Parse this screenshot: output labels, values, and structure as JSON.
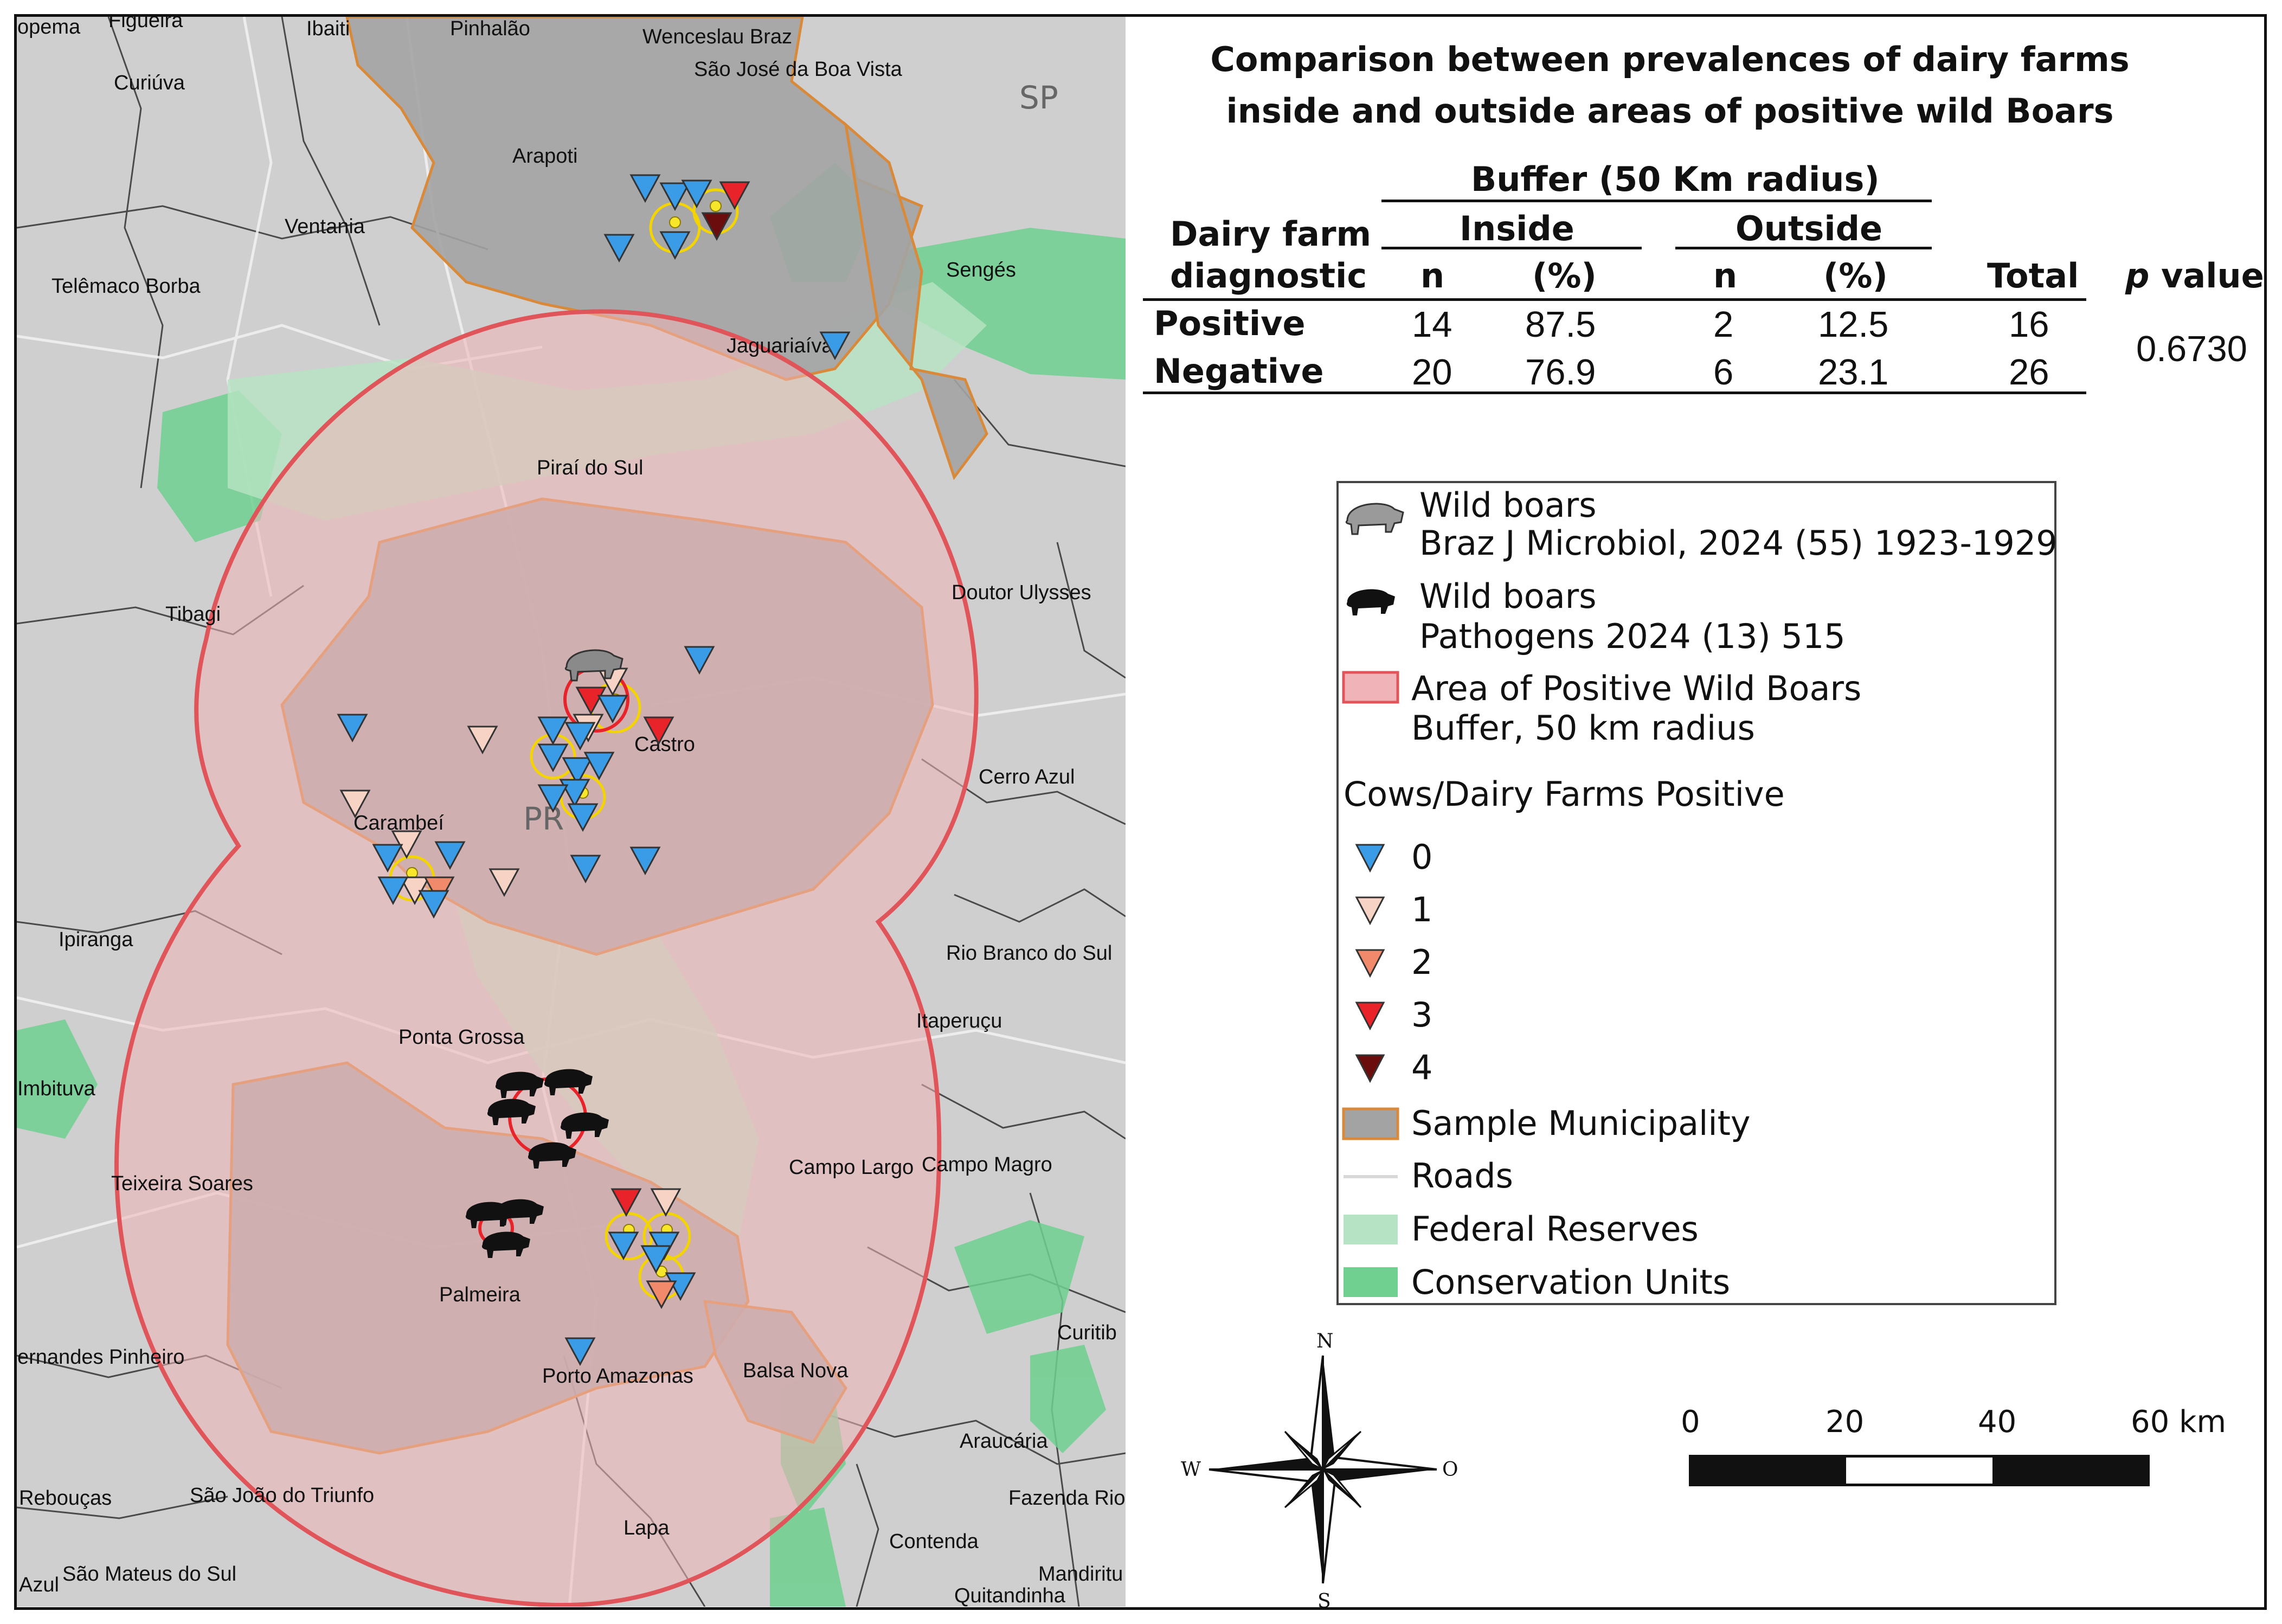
{
  "title": {
    "line1": "Comparison between prevalences of dairy farms",
    "line2": "inside and outside areas of positive wild Boars"
  },
  "table": {
    "buffer_header": "Buffer (50 Km radius)",
    "row_header_line1": "Dairy farm",
    "row_header_line2": "diagnostic",
    "inside_header": "Inside",
    "outside_header": "Outside",
    "n_label": "n",
    "pct_label": "(%)",
    "total_label": "Total",
    "p_label_italic": "p",
    "p_label_rest": " value",
    "p_value": "0.6730",
    "rows": [
      {
        "label": "Positive",
        "inside_n": "14",
        "inside_pct": "87.5",
        "outside_n": "2",
        "outside_pct": "12.5",
        "total": "16"
      },
      {
        "label": "Negative",
        "inside_n": "20",
        "inside_pct": "76.9",
        "outside_n": "6",
        "outside_pct": "23.1",
        "total": "26"
      }
    ]
  },
  "legend": {
    "boar1_line1": "Wild boars",
    "boar1_line2": "Braz J Microbiol, 2024 (55) 1923-1929",
    "boar2_line1": "Wild boars",
    "boar2_line2": "Pathogens 2024 (13) 515",
    "area_line1": "Area of Positive Wild Boars",
    "area_line2": "Buffer, 50 km radius",
    "cows_title": "Cows/Dairy Farms Positive",
    "classes": [
      {
        "label": "0",
        "color": "#3a9be6"
      },
      {
        "label": "1",
        "color": "#f7d3c6"
      },
      {
        "label": "2",
        "color": "#f08a6a"
      },
      {
        "label": "3",
        "color": "#e8232a"
      },
      {
        "label": "4",
        "color": "#6b0d0d"
      }
    ],
    "sample_municipality": "Sample Municipality",
    "roads": "Roads",
    "federal_reserves": "Federal Reserves",
    "conservation_units": "Conservation Units"
  },
  "colors": {
    "municipality_fill": "#a3a3a3",
    "municipality_border": "#d88a3a",
    "buffer_fill": "#f0b4b8",
    "buffer_border": "#e0555a",
    "federal_reserve": "#b6e3c3",
    "conservation_unit": "#6fd08f",
    "background_land": "#cfcfcf"
  },
  "compass": {
    "n": "N",
    "s": "S",
    "w": "W",
    "e": "O"
  },
  "scale": {
    "t0": "0",
    "t1": "20",
    "t2": "40",
    "t3": "60 km"
  },
  "map_labels": {
    "state_sp": "SP",
    "state_pr": "PR",
    "places": [
      "opema",
      "Figueira",
      "Ibaiti",
      "Pinhalão",
      "Wenceslau Braz",
      "São José da Boa Vista",
      "Curiúva",
      "Arapoti",
      "Ventania",
      "Telêmaco Borba",
      "Sengés",
      "Jaguariaíva",
      "Piraí do Sul",
      "Tibagi",
      "Doutor Ulysses",
      "Castro",
      "Cerro Azul",
      "Carambeí",
      "Ipiranga",
      "Rio Branco do Sul",
      "Itaperuçu",
      "Ponta Grossa",
      "Imbituva",
      "Campo Largo",
      "Campo Magro",
      "Teixeira Soares",
      "Palmeira",
      "Curitiba",
      "ernandes Pinheiro",
      "Porto Amazonas",
      "Balsa Nova",
      "Araucária",
      "Rebouças",
      "São João do Triunfo",
      "Fazenda Rio",
      "Lapa",
      "Contenda",
      "Mandirituba",
      "Azul",
      "São Mateus do Sul",
      "Quitandinha"
    ]
  }
}
